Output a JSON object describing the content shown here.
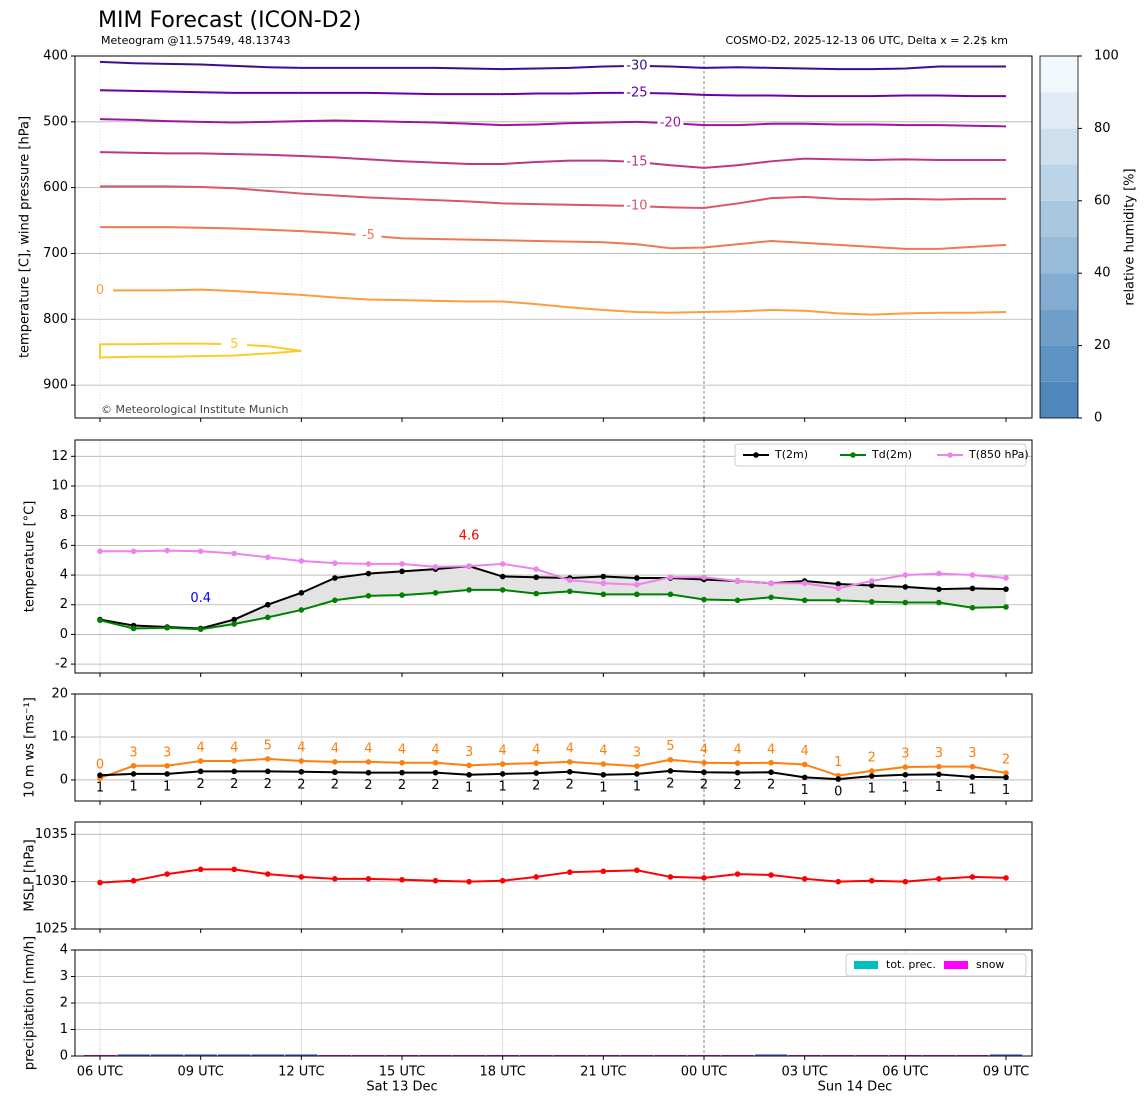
{
  "chart_data": [
    {
      "type": "contour",
      "title": "MIM Forecast (ICON-D2)",
      "subtitle": "Meteogram @11.57549, 48.13743",
      "subtitle_right": "COSMO-D2, 2025-12-13 06 UTC, Delta x = 2.2$ km",
      "credit": "© Meteorological Institute Munich",
      "ylabel": "temperature [C], wind pressure [hPa]",
      "ylim": [
        950,
        400
      ],
      "yticks": [
        400,
        500,
        600,
        700,
        800,
        900
      ],
      "grid": true,
      "series": [
        {
          "name": "-30",
          "color": "#3b0f8c",
          "values": [
            409,
            411,
            412,
            413,
            415,
            417,
            418,
            418,
            418,
            418,
            418,
            419,
            420,
            419,
            418,
            416,
            415,
            416,
            418,
            417,
            418,
            419,
            420,
            420,
            419,
            416,
            416,
            416
          ]
        },
        {
          "name": "-25",
          "color": "#6a00a8",
          "values": [
            452,
            453,
            454,
            455,
            456,
            456,
            456,
            456,
            456,
            457,
            458,
            458,
            458,
            457,
            457,
            456,
            456,
            457,
            459,
            460,
            460,
            461,
            461,
            461,
            460,
            460,
            461,
            461
          ]
        },
        {
          "name": "-20",
          "color": "#9c179e",
          "values": [
            496,
            497,
            499,
            500,
            501,
            500,
            499,
            498,
            499,
            500,
            501,
            503,
            505,
            504,
            502,
            501,
            500,
            502,
            505,
            505,
            503,
            503,
            504,
            504,
            505,
            505,
            506,
            507
          ]
        },
        {
          "name": "-15",
          "color": "#bd3786",
          "values": [
            546,
            547,
            548,
            548,
            549,
            550,
            552,
            554,
            557,
            560,
            562,
            564,
            564,
            561,
            559,
            559,
            561,
            566,
            570,
            566,
            560,
            556,
            557,
            558,
            557,
            558,
            558,
            558
          ]
        },
        {
          "name": "-10",
          "color": "#d8576b",
          "values": [
            598,
            598,
            598,
            599,
            601,
            605,
            609,
            612,
            615,
            617,
            619,
            621,
            624,
            625,
            626,
            627,
            628,
            630,
            631,
            624,
            616,
            614,
            617,
            618,
            617,
            618,
            617,
            617
          ]
        },
        {
          "name": "-5",
          "color": "#ed7953",
          "values": [
            660,
            660,
            660,
            661,
            662,
            664,
            666,
            669,
            673,
            677,
            678,
            679,
            680,
            681,
            682,
            683,
            686,
            692,
            691,
            686,
            681,
            684,
            687,
            690,
            693,
            693,
            690,
            687
          ]
        },
        {
          "name": "0",
          "color": "#fb9f3a",
          "values": [
            756,
            756,
            756,
            755,
            757,
            760,
            763,
            767,
            770,
            771,
            772,
            773,
            773,
            777,
            782,
            786,
            789,
            790,
            789,
            788,
            786,
            787,
            791,
            793,
            791,
            790,
            790,
            789
          ]
        },
        {
          "name": "5",
          "color": "#fdca26",
          "values": [
            838,
            838,
            837,
            837,
            838,
            841,
            848,
            null,
            null,
            null,
            null,
            null,
            null,
            null,
            null,
            null,
            null,
            null,
            null,
            null,
            null,
            null,
            null,
            null,
            null,
            null,
            null,
            null
          ],
          "values_lower": [
            858,
            857,
            857,
            856,
            855,
            852,
            848,
            null,
            null,
            null,
            null,
            null,
            null,
            null,
            null,
            null,
            null,
            null,
            null,
            null,
            null,
            null,
            null,
            null,
            null,
            null,
            null,
            null
          ]
        }
      ],
      "colorbar": {
        "label": "relative humidity [%]",
        "lim": [
          0,
          100
        ],
        "ticks": [
          0,
          20,
          40,
          60,
          80,
          100
        ],
        "colors": [
          "#4f87ba",
          "#5e92c2",
          "#6f9ec9",
          "#82acd1",
          "#97bbd9",
          "#aac7e0",
          "#bcd4e7",
          "#cfdfee",
          "#e1ebf5",
          "#f2f7fc"
        ]
      }
    },
    {
      "type": "line",
      "ylabel": "temperature [°C]",
      "ylim": [
        -2.6,
        13.1
      ],
      "yticks": [
        -2,
        0,
        2,
        4,
        6,
        8,
        10,
        12
      ],
      "grid": true,
      "legend": "upper right",
      "shade": {
        "between": [
          0,
          1
        ],
        "color": "#e3e3e3"
      },
      "series": [
        {
          "name": "T(2m)",
          "color": "#000000",
          "values": [
            1.0,
            0.6,
            0.5,
            0.4,
            1.0,
            2.0,
            2.8,
            3.8,
            4.1,
            4.25,
            4.4,
            4.6,
            3.9,
            3.85,
            3.8,
            3.9,
            3.8,
            3.8,
            3.7,
            3.6,
            3.45,
            3.6,
            3.4,
            3.3,
            3.2,
            3.05,
            3.1,
            3.05
          ]
        },
        {
          "name": "Td(2m)",
          "color": "#008000",
          "values": [
            0.95,
            0.4,
            0.45,
            0.35,
            0.7,
            1.15,
            1.65,
            2.3,
            2.6,
            2.65,
            2.8,
            3.0,
            3.0,
            2.75,
            2.9,
            2.7,
            2.7,
            2.7,
            2.35,
            2.3,
            2.5,
            2.3,
            2.3,
            2.2,
            2.15,
            2.15,
            1.8,
            1.85
          ]
        },
        {
          "name": "T(850 hPa)",
          "color": "#ee82ee",
          "values": [
            5.6,
            5.6,
            5.65,
            5.6,
            5.45,
            5.2,
            4.95,
            4.8,
            4.75,
            4.75,
            4.55,
            4.6,
            4.75,
            4.4,
            3.65,
            3.45,
            3.35,
            3.85,
            3.85,
            3.6,
            3.45,
            3.45,
            3.1,
            3.6,
            4.0,
            4.1,
            4.0,
            3.8
          ]
        }
      ],
      "annotations": [
        {
          "label": "4.6",
          "series": 0,
          "index": 11,
          "color": "#ff0000"
        },
        {
          "label": "0.4",
          "series": 0,
          "index": 3,
          "color": "#0000ff"
        }
      ]
    },
    {
      "type": "line",
      "ylabel": "10 m ws [ms⁻¹]",
      "ylim": [
        -4.9,
        20
      ],
      "yticks": [
        0,
        10,
        20
      ],
      "grid": true,
      "series": [
        {
          "color": "#ff7f0e",
          "values": [
            0.4,
            3.3,
            3.3,
            4.4,
            4.4,
            4.9,
            4.4,
            4.2,
            4.2,
            4.0,
            4.0,
            3.4,
            3.7,
            3.9,
            4.2,
            3.7,
            3.2,
            4.7,
            4.0,
            3.9,
            4.0,
            3.6,
            1.0,
            2.1,
            3.0,
            3.1,
            3.1,
            1.6
          ],
          "value_labels": [
            "0",
            "3",
            "3",
            "4",
            "4",
            "5",
            "4",
            "4",
            "4",
            "4",
            "4",
            "3",
            "4",
            "4",
            "4",
            "4",
            "3",
            "5",
            "4",
            "4",
            "4",
            "4",
            "1",
            "2",
            "3",
            "3",
            "3",
            "2"
          ]
        },
        {
          "color": "#000000",
          "values": [
            1.1,
            1.4,
            1.4,
            2.0,
            2.0,
            2.0,
            1.9,
            1.8,
            1.7,
            1.7,
            1.7,
            1.2,
            1.4,
            1.6,
            1.9,
            1.2,
            1.4,
            2.1,
            1.8,
            1.7,
            1.8,
            0.6,
            0.2,
            0.9,
            1.2,
            1.3,
            0.7,
            0.6
          ],
          "value_labels": [
            "1",
            "1",
            "1",
            "2",
            "2",
            "2",
            "2",
            "2",
            "2",
            "2",
            "2",
            "1",
            "1",
            "2",
            "2",
            "1",
            "1",
            "2",
            "2",
            "2",
            "2",
            "1",
            "0",
            "1",
            "1",
            "1",
            "1",
            "1"
          ]
        }
      ]
    },
    {
      "type": "line",
      "ylabel": "MSLP [hPa]",
      "ylim": [
        1025,
        1036.3
      ],
      "yticks": [
        1025,
        1030,
        1035
      ],
      "grid": true,
      "series": [
        {
          "color": "#ff0000",
          "values": [
            1029.9,
            1030.1,
            1030.8,
            1031.3,
            1031.3,
            1030.8,
            1030.5,
            1030.3,
            1030.3,
            1030.2,
            1030.1,
            1030.0,
            1030.1,
            1030.5,
            1031.0,
            1031.1,
            1031.2,
            1030.5,
            1030.4,
            1030.8,
            1030.7,
            1030.3,
            1030.0,
            1030.1,
            1030.0,
            1030.3,
            1030.5,
            1030.4
          ]
        }
      ]
    },
    {
      "type": "bar",
      "ylabel": "precipitation [mm/h]",
      "ylim": [
        0,
        4
      ],
      "yticks": [
        0,
        1,
        2,
        3,
        4
      ],
      "grid": true,
      "legend": "upper right",
      "categories": [
        "06 UTC",
        null,
        null,
        "09 UTC",
        null,
        null,
        "12 UTC",
        null,
        null,
        "15 UTC",
        null,
        null,
        "18 UTC",
        null,
        null,
        "21 UTC",
        null,
        null,
        "00 UTC",
        null,
        null,
        "03 UTC",
        null,
        null,
        "06 UTC",
        null,
        null,
        "09 UTC"
      ],
      "day_labels": [
        "Sat 13 Dec",
        "Sun 14 Dec"
      ],
      "series": [
        {
          "name": "tot. prec.",
          "color": "#00bfbf",
          "values": [
            0,
            0.03,
            0.03,
            0.03,
            0.03,
            0.03,
            0.03,
            0,
            0,
            0,
            0,
            0,
            0,
            0,
            0,
            0,
            0,
            0,
            0,
            0,
            0.03,
            0,
            0,
            0,
            0,
            0,
            0,
            0.03
          ]
        },
        {
          "name": "snow",
          "color": "#ff00ff",
          "values": [
            0,
            0,
            0,
            0,
            0,
            0,
            0,
            0,
            0,
            0,
            0,
            0,
            0,
            0,
            0,
            0,
            0,
            0,
            0,
            0,
            0,
            0,
            0,
            0,
            0,
            0,
            0,
            0
          ]
        }
      ]
    }
  ]
}
